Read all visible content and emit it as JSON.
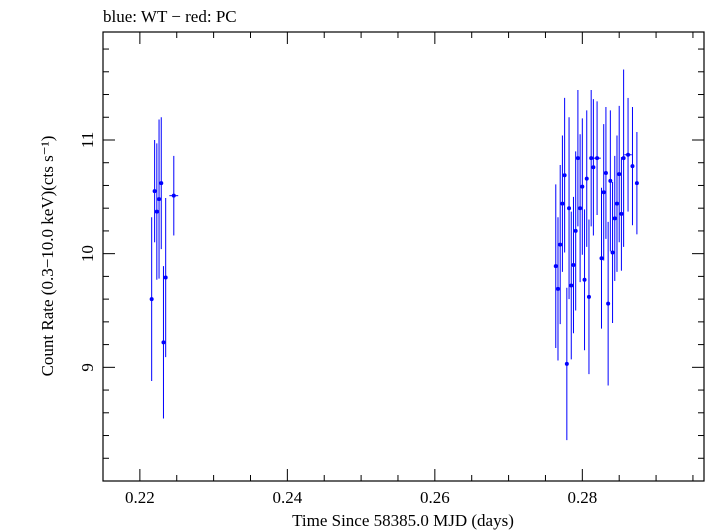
{
  "chart_data": {
    "type": "scatter",
    "title": "blue: WT − red: PC",
    "xlabel": "Time Since 58385.0 MJD (days)",
    "ylabel": "Count Rate (0.3−10.0 keV)(cts s⁻¹)",
    "xlim": [
      0.215,
      0.2965
    ],
    "ylim": [
      8.0,
      11.95
    ],
    "x_ticks": [
      0.22,
      0.24,
      0.26,
      0.28
    ],
    "x_tick_labels": [
      "0.22",
      "0.24",
      "0.26",
      "0.28"
    ],
    "y_ticks": [
      9,
      10,
      11
    ],
    "y_tick_labels": [
      "9",
      "10",
      "11"
    ],
    "series": [
      {
        "name": "WT",
        "color": "#0000ff",
        "points": [
          {
            "x": 0.2216,
            "y": 9.6,
            "err": 0.72
          },
          {
            "x": 0.222,
            "y": 10.55,
            "err": 0.45
          },
          {
            "x": 0.2223,
            "y": 10.37,
            "err": 0.6
          },
          {
            "x": 0.2226,
            "y": 10.48,
            "err": 0.7
          },
          {
            "x": 0.2229,
            "y": 10.62,
            "err": 0.58
          },
          {
            "x": 0.2232,
            "y": 9.22,
            "err": 0.67
          },
          {
            "x": 0.2235,
            "y": 9.79,
            "err": 0.7
          },
          {
            "x": 0.2246,
            "y": 10.51,
            "err": 0.35,
            "xerr": 0.0006
          },
          {
            "x": 0.2764,
            "y": 9.89,
            "err": 0.72
          },
          {
            "x": 0.2767,
            "y": 9.69,
            "err": 0.63
          },
          {
            "x": 0.277,
            "y": 10.08,
            "err": 0.7
          },
          {
            "x": 0.2773,
            "y": 10.44,
            "err": 0.6
          },
          {
            "x": 0.2776,
            "y": 10.69,
            "err": 0.68
          },
          {
            "x": 0.2779,
            "y": 9.03,
            "err": 0.67
          },
          {
            "x": 0.2782,
            "y": 10.4,
            "err": 0.8
          },
          {
            "x": 0.2785,
            "y": 9.72,
            "err": 0.65
          },
          {
            "x": 0.2788,
            "y": 9.9,
            "err": 0.6
          },
          {
            "x": 0.2791,
            "y": 10.2,
            "err": 0.7
          },
          {
            "x": 0.2794,
            "y": 10.84,
            "err": 0.6
          },
          {
            "x": 0.2797,
            "y": 10.4,
            "err": 0.65
          },
          {
            "x": 0.28,
            "y": 10.59,
            "err": 0.6
          },
          {
            "x": 0.2803,
            "y": 9.77,
            "err": 0.62
          },
          {
            "x": 0.2806,
            "y": 10.66,
            "err": 0.6
          },
          {
            "x": 0.2809,
            "y": 9.62,
            "err": 0.68
          },
          {
            "x": 0.2812,
            "y": 10.84,
            "err": 0.6
          },
          {
            "x": 0.2815,
            "y": 10.76,
            "err": 0.6
          },
          {
            "x": 0.282,
            "y": 10.84,
            "err": 0.5,
            "xerr": 0.0005
          },
          {
            "x": 0.2826,
            "y": 9.96,
            "err": 0.62
          },
          {
            "x": 0.2829,
            "y": 10.54,
            "err": 0.6
          },
          {
            "x": 0.2832,
            "y": 10.71,
            "err": 0.58
          },
          {
            "x": 0.2835,
            "y": 9.56,
            "err": 0.72
          },
          {
            "x": 0.2838,
            "y": 10.64,
            "err": 0.62
          },
          {
            "x": 0.2841,
            "y": 10.01,
            "err": 0.62
          },
          {
            "x": 0.2844,
            "y": 10.31,
            "err": 0.55
          },
          {
            "x": 0.2847,
            "y": 10.44,
            "err": 0.6
          },
          {
            "x": 0.285,
            "y": 10.7,
            "err": 0.6
          },
          {
            "x": 0.2853,
            "y": 10.35,
            "err": 0.5
          },
          {
            "x": 0.2856,
            "y": 10.84,
            "err": 0.78
          },
          {
            "x": 0.2862,
            "y": 10.87,
            "err": 0.5,
            "xerr": 0.0005
          },
          {
            "x": 0.2868,
            "y": 10.77,
            "err": 0.52
          },
          {
            "x": 0.2874,
            "y": 10.62,
            "err": 0.45
          }
        ]
      }
    ]
  }
}
